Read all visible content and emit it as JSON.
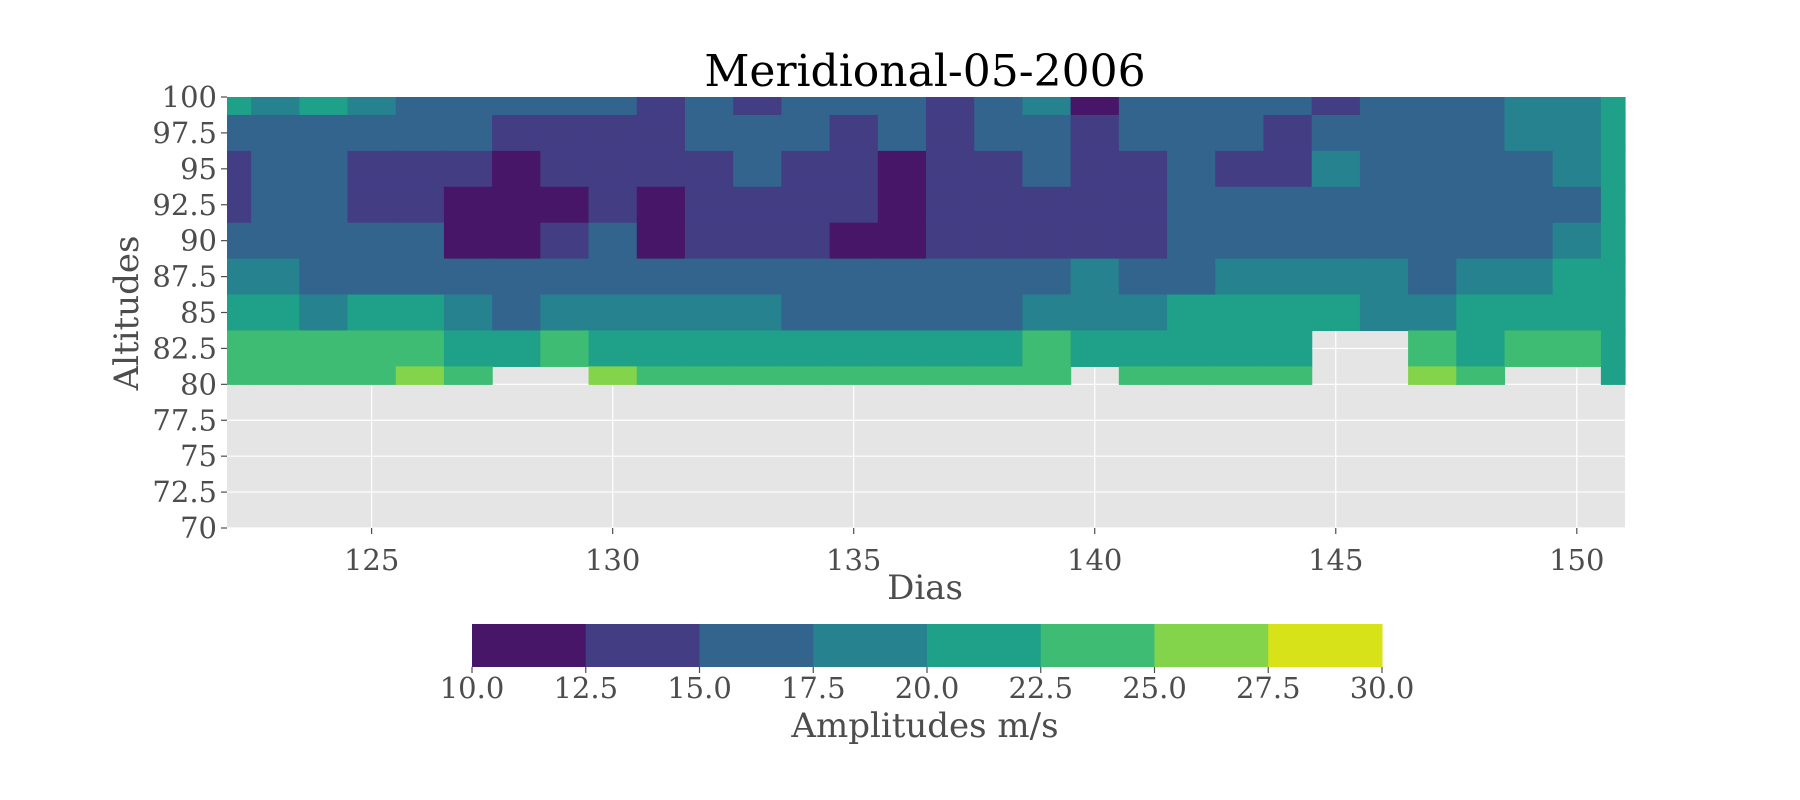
{
  "chart_data": {
    "type": "heatmap",
    "title": "Meridional-05-2006",
    "xlabel": "Dias",
    "ylabel": "Altitudes",
    "xlim": [
      122,
      151
    ],
    "ylim": [
      70,
      100
    ],
    "grid": true,
    "x_ticks": [
      "125",
      "130",
      "135",
      "140",
      "145",
      "150"
    ],
    "y_ticks": [
      "100",
      "97.5",
      "95",
      "92.5",
      "90",
      "87.5",
      "85",
      "82.5",
      "80",
      "77.5",
      "75",
      "72.5",
      "70"
    ],
    "colorbar": {
      "label": "Amplitudes m/s",
      "ticks": [
        "10.0",
        "12.5",
        "15.0",
        "17.5",
        "20.0",
        "22.5",
        "25.0",
        "27.5",
        "30.0"
      ],
      "levels": [
        10,
        12.5,
        15,
        17.5,
        20,
        22.5,
        25,
        27.5,
        30
      ],
      "colors": [
        "#481668",
        "#433d84",
        "#32648e",
        "#26828e",
        "#1fa088",
        "#3fbc73",
        "#84d44b",
        "#d8e219"
      ],
      "placement": "bottom"
    },
    "missing_color": "#e5e5e5",
    "x": [
      122,
      123,
      124,
      125,
      126,
      127,
      128,
      129,
      130,
      131,
      132,
      133,
      134,
      135,
      136,
      137,
      138,
      139,
      140,
      141,
      142,
      143,
      144,
      145,
      146,
      147,
      148,
      149,
      150,
      151
    ],
    "y": [
      100,
      97.5,
      95,
      92.5,
      90,
      87.5,
      85,
      82.5,
      80
    ],
    "z": [
      [
        20,
        19,
        20,
        18,
        17,
        16,
        15,
        16,
        15,
        14,
        15,
        14,
        15,
        16,
        15,
        14,
        15,
        18,
        12,
        16,
        17,
        16,
        15,
        14,
        15,
        16,
        17,
        18,
        19,
        22
      ],
      [
        15,
        16,
        17,
        16,
        15,
        15,
        13,
        14,
        14,
        14,
        15,
        16,
        15,
        14,
        15,
        14,
        15,
        16,
        14,
        15,
        16,
        15,
        14,
        16,
        15,
        16,
        17,
        18,
        19,
        22
      ],
      [
        14,
        16,
        15,
        14,
        14,
        13,
        12,
        14,
        14,
        13,
        14,
        15,
        14,
        13,
        12,
        14,
        14,
        15,
        14,
        14,
        15,
        14,
        14,
        18,
        15,
        16,
        16,
        17,
        18,
        21
      ],
      [
        14,
        16,
        15,
        14,
        14,
        12,
        11,
        12,
        14,
        12,
        14,
        14,
        14,
        13,
        12,
        14,
        14,
        14,
        14,
        14,
        15,
        15,
        15,
        16,
        15,
        15,
        16,
        16,
        17,
        20
      ],
      [
        16,
        17,
        16,
        15,
        15,
        12,
        12,
        13,
        15,
        12,
        14,
        14,
        14,
        12,
        12,
        14,
        14,
        14,
        14,
        14,
        15,
        16,
        16,
        16,
        16,
        16,
        16,
        17,
        18,
        20
      ],
      [
        18,
        18,
        17,
        16,
        17,
        16,
        15,
        15,
        16,
        15,
        15,
        15,
        15,
        15,
        15,
        15,
        15,
        15,
        18,
        16,
        17,
        18,
        18,
        18,
        18,
        17,
        18,
        19,
        20,
        21
      ],
      [
        21,
        20,
        19,
        20,
        20,
        19,
        17,
        18,
        19,
        18,
        18,
        18,
        17,
        17,
        17,
        17,
        17,
        18,
        18,
        19,
        20,
        20,
        20,
        20,
        19,
        19,
        20,
        21,
        22,
        22
      ],
      [
        23,
        24,
        24,
        23,
        24,
        22,
        21,
        23,
        22,
        22,
        21,
        22,
        20,
        21,
        20,
        21,
        21,
        23,
        22,
        21,
        22,
        22,
        22,
        null,
        null,
        23,
        22,
        23,
        24,
        22
      ],
      [
        23,
        24,
        24,
        24,
        26,
        24,
        null,
        null,
        25,
        24,
        24,
        24,
        24,
        24,
        24,
        24,
        24,
        24,
        null,
        24,
        24,
        24,
        24,
        null,
        null,
        26,
        24,
        null,
        null,
        22
      ]
    ]
  }
}
